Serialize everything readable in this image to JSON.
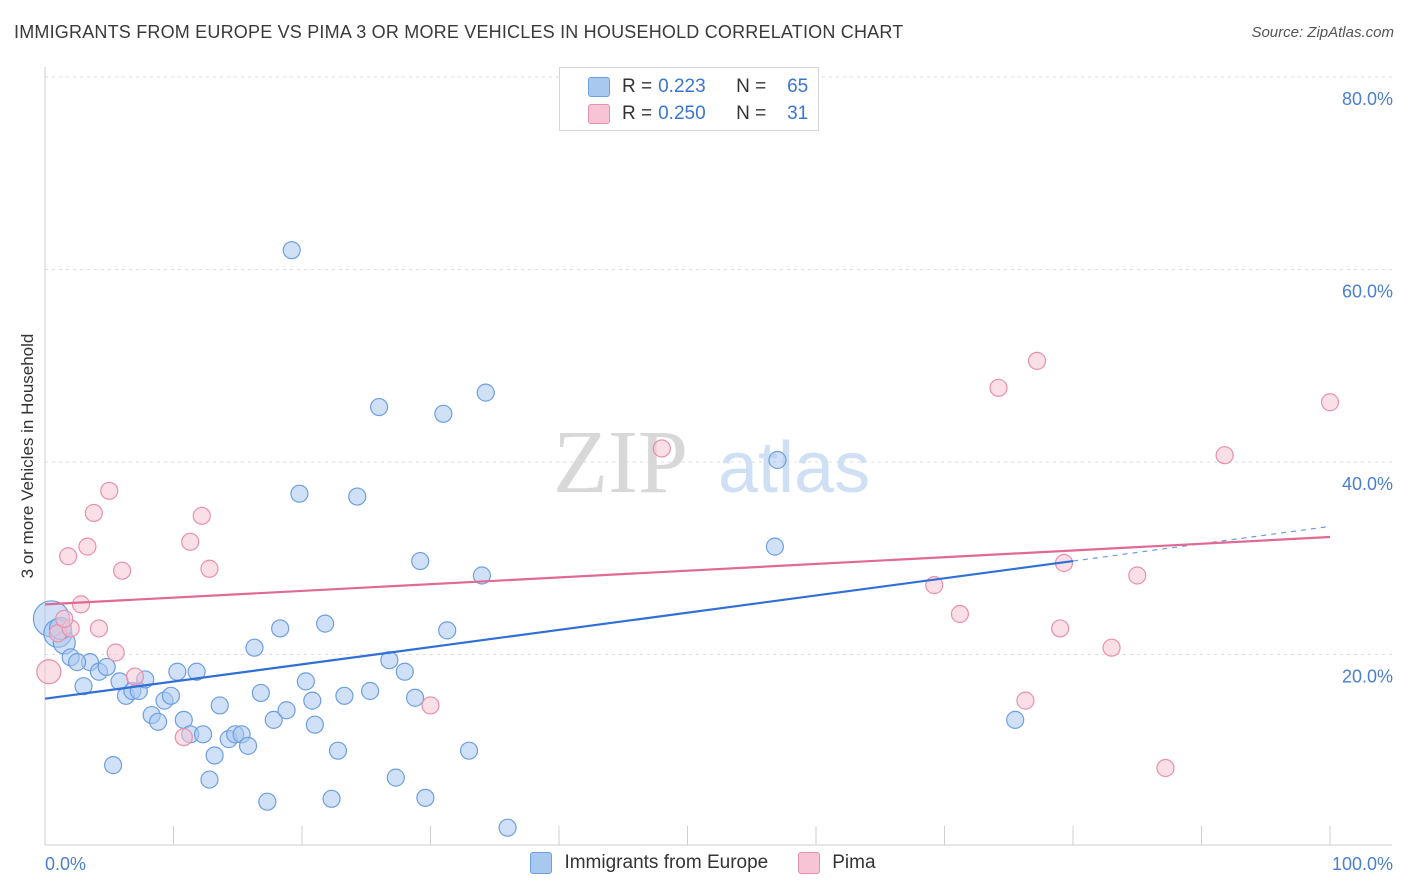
{
  "header": {
    "title": "IMMIGRANTS FROM EUROPE VS PIMA 3 OR MORE VEHICLES IN HOUSEHOLD CORRELATION CHART",
    "source": "Source: ZipAtlas.com"
  },
  "watermark": {
    "zip": "ZIP",
    "atlas": "atlas"
  },
  "legend": {
    "rows": [
      {
        "r_label": "R =",
        "r_value": "0.223",
        "n_label": "N =",
        "n_value": "65",
        "color": "#a9c8f0",
        "border": "#6d9fe0"
      },
      {
        "r_label": "R =",
        "r_value": "0.250",
        "n_label": "N =",
        "n_value": "31",
        "color": "#f6c4d4",
        "border": "#e890ac"
      }
    ]
  },
  "bottom_legend": {
    "items": [
      {
        "label": "Immigrants from Europe",
        "color": "#a9c8f0",
        "border": "#6d9fe0"
      },
      {
        "label": "Pima",
        "color": "#f6c4d4",
        "border": "#e890ac"
      }
    ]
  },
  "chart_data": {
    "type": "scatter",
    "title": "IMMIGRANTS FROM EUROPE VS PIMA 3 OR MORE VEHICLES IN HOUSEHOLD CORRELATION CHART",
    "xlabel": "",
    "ylabel": "3 or more Vehicles in Household",
    "xlim": [
      0,
      100
    ],
    "ylim": [
      0,
      80
    ],
    "x_tick_labels": [
      "0.0%",
      "100.0%"
    ],
    "y_ticks": [
      20,
      40,
      60,
      80
    ],
    "y_tick_labels": [
      "20.0%",
      "40.0%",
      "60.0%",
      "80.0%"
    ],
    "grid": true,
    "series": [
      {
        "name": "Immigrants from Europe",
        "color": "#a9c8f0",
        "stroke": "#6d9fe0",
        "line_color": "#2f6fd6",
        "trend": {
          "x0": 0,
          "y0": 15.2,
          "x1": 80,
          "y1": 29.5,
          "dashed_to_x": 100,
          "dashed_to_y": 33.1
        },
        "points": [
          [
            0.5,
            23.5
          ],
          [
            1.0,
            22.0
          ],
          [
            1.5,
            21.0
          ],
          [
            2.0,
            19.5
          ],
          [
            3.0,
            16.5
          ],
          [
            3.5,
            19.0
          ],
          [
            4.2,
            18.0
          ],
          [
            4.8,
            18.5
          ],
          [
            5.3,
            8.3
          ],
          [
            5.8,
            17.0
          ],
          [
            6.3,
            15.5
          ],
          [
            6.8,
            16.0
          ],
          [
            7.3,
            16.0
          ],
          [
            7.8,
            17.2
          ],
          [
            8.3,
            13.5
          ],
          [
            8.8,
            12.8
          ],
          [
            9.3,
            15.0
          ],
          [
            9.8,
            15.5
          ],
          [
            10.3,
            18.0
          ],
          [
            10.8,
            13.0
          ],
          [
            11.3,
            11.5
          ],
          [
            11.8,
            18.0
          ],
          [
            12.3,
            11.5
          ],
          [
            12.8,
            6.8
          ],
          [
            13.2,
            9.3
          ],
          [
            13.6,
            14.5
          ],
          [
            14.3,
            11.0
          ],
          [
            14.8,
            11.5
          ],
          [
            15.3,
            11.5
          ],
          [
            15.8,
            10.3
          ],
          [
            16.3,
            20.5
          ],
          [
            16.8,
            15.8
          ],
          [
            17.3,
            4.5
          ],
          [
            17.8,
            13.0
          ],
          [
            18.3,
            22.5
          ],
          [
            18.8,
            14.0
          ],
          [
            19.2,
            61.8
          ],
          [
            19.8,
            36.5
          ],
          [
            20.3,
            17.0
          ],
          [
            20.8,
            15.0
          ],
          [
            21.0,
            12.5
          ],
          [
            21.8,
            23.0
          ],
          [
            22.3,
            4.8
          ],
          [
            22.8,
            9.8
          ],
          [
            23.3,
            15.5
          ],
          [
            24.3,
            36.2
          ],
          [
            25.3,
            16.0
          ],
          [
            26.0,
            45.5
          ],
          [
            26.8,
            19.2
          ],
          [
            27.3,
            7.0
          ],
          [
            28.0,
            18.0
          ],
          [
            28.8,
            15.3
          ],
          [
            29.2,
            29.5
          ],
          [
            29.6,
            4.9
          ],
          [
            31.3,
            22.3
          ],
          [
            31.0,
            44.8
          ],
          [
            33.0,
            9.8
          ],
          [
            34.0,
            28.0
          ],
          [
            34.3,
            47.0
          ],
          [
            36.0,
            1.8
          ],
          [
            57.0,
            40.0
          ],
          [
            56.8,
            31.0
          ],
          [
            75.5,
            13.0
          ],
          [
            1.2,
            22.5
          ],
          [
            2.5,
            19.0
          ]
        ]
      },
      {
        "name": "Pima",
        "color": "#f6c4d4",
        "stroke": "#e890ac",
        "line_color": "#e06a93",
        "trend": {
          "x0": 0,
          "y0": 25.0,
          "x1": 100,
          "y1": 32.0
        },
        "points": [
          [
            0.3,
            18.0
          ],
          [
            1.0,
            22.0
          ],
          [
            1.8,
            30.0
          ],
          [
            2.8,
            25.0
          ],
          [
            3.3,
            31.0
          ],
          [
            3.8,
            34.5
          ],
          [
            4.2,
            22.5
          ],
          [
            5.0,
            36.8
          ],
          [
            5.5,
            20.0
          ],
          [
            6.0,
            28.5
          ],
          [
            7.0,
            17.5
          ],
          [
            10.8,
            11.2
          ],
          [
            11.3,
            31.5
          ],
          [
            12.2,
            34.2
          ],
          [
            12.8,
            28.7
          ],
          [
            30.0,
            14.5
          ],
          [
            48.0,
            41.2
          ],
          [
            69.2,
            27.0
          ],
          [
            71.2,
            24.0
          ],
          [
            74.2,
            47.5
          ],
          [
            76.3,
            15.0
          ],
          [
            77.2,
            50.3
          ],
          [
            79.0,
            22.5
          ],
          [
            79.3,
            29.3
          ],
          [
            83.0,
            20.5
          ],
          [
            85.0,
            28.0
          ],
          [
            87.2,
            8.0
          ],
          [
            91.8,
            40.5
          ],
          [
            100.0,
            46.0
          ],
          [
            2.0,
            22.5
          ],
          [
            1.5,
            23.5
          ]
        ]
      }
    ]
  }
}
